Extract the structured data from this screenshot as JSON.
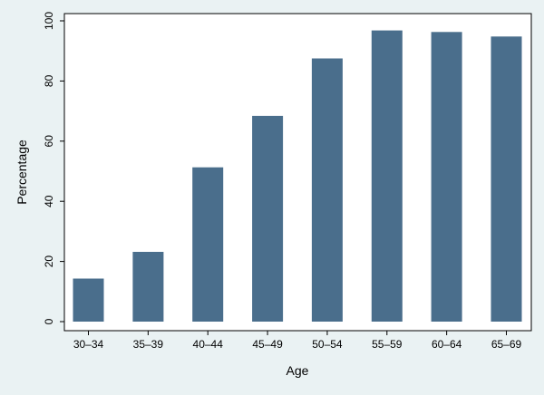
{
  "chart_data": {
    "type": "bar",
    "categories": [
      "30–34",
      "35–39",
      "40–44",
      "45–49",
      "50–54",
      "55–59",
      "60–64",
      "65–69"
    ],
    "values": [
      14.3,
      23.2,
      51.3,
      68.4,
      87.5,
      96.8,
      96.3,
      94.8
    ],
    "title": "",
    "xlabel": "Age",
    "ylabel": "Percentage",
    "ylim": [
      0,
      100
    ],
    "yticks": [
      0,
      20,
      40,
      60,
      80,
      100
    ],
    "grid": false,
    "legend": "none",
    "bar_color": "#4a6e8c",
    "plot_background": "#ffffff",
    "page_background": "#eaf2f3"
  }
}
